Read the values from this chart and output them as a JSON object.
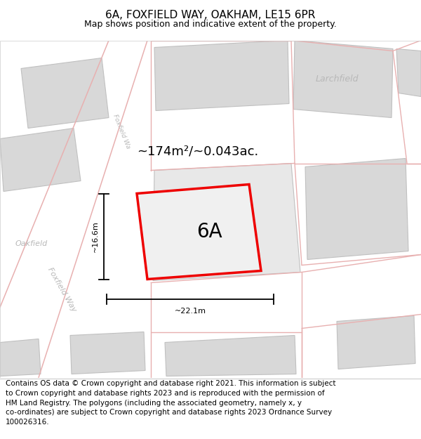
{
  "title": "6A, FOXFIELD WAY, OAKHAM, LE15 6PR",
  "subtitle": "Map shows position and indicative extent of the property.",
  "footer_lines": [
    "Contains OS data © Crown copyright and database right 2021. This information is subject",
    "to Crown copyright and database rights 2023 and is reproduced with the permission of",
    "HM Land Registry. The polygons (including the associated geometry, namely x, y",
    "co-ordinates) are subject to Crown copyright and database rights 2023 Ordnance Survey",
    "100026316."
  ],
  "area_label": "~174m²/~0.043ac.",
  "plot_label": "6A",
  "dim_width": "~22.1m",
  "dim_height": "~16.6m",
  "label_foxfield": "Foxfield Way",
  "label_larchfield": "Larchfield",
  "label_oakfield": "Oakfield",
  "map_bg": "#f8f8f8",
  "bld_color": "#d8d8d8",
  "bld_edge": "#c0c0c0",
  "road_line_color": "#e8b0b0",
  "plot_fill": "#f0f0f0",
  "plot_edge_color": "#ee0000",
  "gray_label": "#b8b8b8",
  "white": "#ffffff",
  "title_fontsize": 11,
  "subtitle_fontsize": 9,
  "footer_fontsize": 7.5,
  "area_fontsize": 13,
  "plot_label_fontsize": 20,
  "dim_fontsize": 8,
  "map_label_fontsize": 9
}
